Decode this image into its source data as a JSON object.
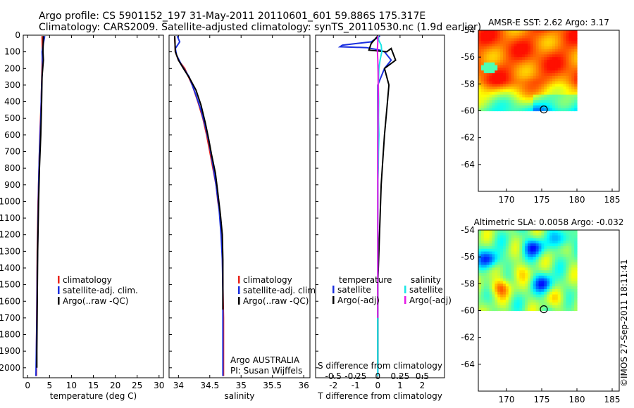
{
  "title_line1": "Argo profile: CS 5901152_197 31-May-2011 20110601_601 59.886S 175.317E",
  "title_line2": "Climatology: CARS2009. Satellite-adjusted climatology: synTS_20110530.nc (1.9d earlier)",
  "credit": "©IMOS 27-Sep-2011 18:11:41",
  "colors": {
    "climatology": "#e8231a",
    "satellite": "#1a2fe0",
    "argo": "#000000",
    "sat_salinity": "#19e6e6",
    "argo_salinity": "#e619e6"
  },
  "chart_data": [
    {
      "id": "temperature",
      "type": "line",
      "xlabel": "temperature (deg C)",
      "ylabel": "",
      "xlim": [
        -1,
        31
      ],
      "ylim": [
        2060,
        0
      ],
      "xticks": [
        0,
        5,
        10,
        15,
        20,
        25,
        30
      ],
      "yticks": [
        0,
        100,
        200,
        300,
        400,
        500,
        600,
        700,
        800,
        900,
        1000,
        1100,
        1200,
        1300,
        1400,
        1500,
        1600,
        1700,
        1800,
        1900,
        2000
      ],
      "legend": [
        "climatology",
        "satellite-adj. clim.",
        "Argo(..raw -QC)"
      ],
      "legend_position": "lower-center",
      "series": [
        {
          "name": "climatology",
          "color_key": "climatology",
          "points": [
            [
              3.3,
              5
            ],
            [
              3.35,
              100
            ],
            [
              3.3,
              200
            ],
            [
              3.1,
              400
            ],
            [
              2.8,
              600
            ],
            [
              2.6,
              800
            ],
            [
              2.4,
              1000
            ],
            [
              2.2,
              1300
            ],
            [
              2.1,
              1600
            ],
            [
              2.0,
              1900
            ],
            [
              2.0,
              2050
            ]
          ]
        },
        {
          "name": "satellite-adj. clim.",
          "color_key": "satellite",
          "points": [
            [
              3.9,
              5
            ],
            [
              3.6,
              50
            ],
            [
              3.3,
              100
            ],
            [
              3.4,
              180
            ],
            [
              3.2,
              300
            ],
            [
              3.0,
              500
            ],
            [
              2.7,
              700
            ],
            [
              2.5,
              900
            ],
            [
              2.4,
              1100
            ],
            [
              2.2,
              1400
            ],
            [
              2.1,
              1700
            ],
            [
              1.9,
              2050
            ]
          ]
        },
        {
          "name": "Argo(..raw -QC)",
          "color_key": "argo",
          "points": [
            [
              3.6,
              5
            ],
            [
              3.5,
              100
            ],
            [
              3.6,
              150
            ],
            [
              3.3,
              250
            ],
            [
              3.2,
              400
            ],
            [
              3.0,
              600
            ],
            [
              2.7,
              800
            ],
            [
              2.5,
              1000
            ],
            [
              2.3,
              1300
            ],
            [
              2.2,
              1600
            ],
            [
              2.1,
              1900
            ],
            [
              2.1,
              2000
            ]
          ]
        }
      ]
    },
    {
      "id": "salinity",
      "type": "line",
      "xlabel": "salinity",
      "ylabel": "",
      "xlim": [
        33.85,
        36.1
      ],
      "ylim": [
        2060,
        0
      ],
      "xticks": [
        34,
        34.5,
        35,
        35.5,
        36
      ],
      "legend": [
        "climatology",
        "satellite-adj. clim.",
        "Argo(..raw -QC)"
      ],
      "legend_position": "lower-right",
      "annotations": [
        "Argo AUSTRALIA",
        "PI: Susan Wijffels"
      ],
      "series": [
        {
          "name": "climatology",
          "color_key": "climatology",
          "points": [
            [
              33.94,
              5
            ],
            [
              33.95,
              100
            ],
            [
              34.0,
              150
            ],
            [
              34.1,
              200
            ],
            [
              34.22,
              300
            ],
            [
              34.31,
              400
            ],
            [
              34.39,
              500
            ],
            [
              34.45,
              600
            ],
            [
              34.5,
              700
            ],
            [
              34.55,
              800
            ],
            [
              34.6,
              900
            ],
            [
              34.63,
              1000
            ],
            [
              34.67,
              1100
            ],
            [
              34.69,
              1200
            ],
            [
              34.7,
              1300
            ],
            [
              34.71,
              1500
            ],
            [
              34.72,
              1700
            ],
            [
              34.72,
              1900
            ],
            [
              34.72,
              2050
            ]
          ]
        },
        {
          "name": "satellite-adj. clim.",
          "color_key": "satellite",
          "points": [
            [
              33.98,
              5
            ],
            [
              34.02,
              40
            ],
            [
              33.95,
              80
            ],
            [
              33.97,
              120
            ],
            [
              34.05,
              180
            ],
            [
              34.17,
              250
            ],
            [
              34.27,
              350
            ],
            [
              34.36,
              450
            ],
            [
              34.43,
              550
            ],
            [
              34.49,
              650
            ],
            [
              34.55,
              780
            ],
            [
              34.6,
              900
            ],
            [
              34.65,
              1050
            ],
            [
              34.68,
              1200
            ],
            [
              34.7,
              1350
            ],
            [
              34.71,
              1550
            ],
            [
              34.71,
              1750
            ],
            [
              34.71,
              1950
            ],
            [
              34.71,
              2050
            ]
          ]
        },
        {
          "name": "Argo(..raw -QC)",
          "color_key": "argo",
          "points": [
            [
              33.94,
              5
            ],
            [
              33.95,
              100
            ],
            [
              34.0,
              150
            ],
            [
              34.08,
              200
            ],
            [
              34.18,
              260
            ],
            [
              34.28,
              330
            ],
            [
              34.36,
              420
            ],
            [
              34.43,
              530
            ],
            [
              34.48,
              620
            ],
            [
              34.53,
              720
            ],
            [
              34.59,
              830
            ],
            [
              34.63,
              950
            ],
            [
              34.67,
              1080
            ],
            [
              34.7,
              1200
            ],
            [
              34.71,
              1350
            ],
            [
              34.71,
              1500
            ],
            [
              34.71,
              1650
            ]
          ]
        }
      ]
    },
    {
      "id": "difference",
      "type": "line",
      "xlabel": "T difference from climatology",
      "x2label": "S difference from climatology",
      "ylabel": "",
      "xlim": [
        -2.8,
        3.0
      ],
      "ylim": [
        2060,
        0
      ],
      "xticks": [
        -2,
        -1,
        0,
        1,
        2
      ],
      "x2ticks": [
        -0.5,
        -0.25,
        0,
        0.25,
        0.5
      ],
      "legend": [
        "temperature",
        "satellite",
        "Argo(-adj)",
        "salinity",
        "satellite",
        "Argo(-adj)"
      ],
      "legend_position": "lower-center",
      "series": [
        {
          "name": "temperature satellite",
          "color_key": "satellite",
          "points": [
            [
              0.1,
              5
            ],
            [
              -0.3,
              40
            ],
            [
              -1.6,
              60
            ],
            [
              -1.7,
              70
            ],
            [
              -0.5,
              75
            ],
            [
              0.1,
              90
            ],
            [
              0.3,
              100
            ],
            [
              0.6,
              150
            ],
            [
              0.3,
              200
            ],
            [
              0.0,
              300
            ],
            [
              0.0,
              500
            ],
            [
              0.0,
              1000
            ],
            [
              0.0,
              1500
            ],
            [
              0.0,
              2050
            ]
          ]
        },
        {
          "name": "temperature Argo(-adj)",
          "color_key": "argo",
          "points": [
            [
              0.0,
              5
            ],
            [
              -0.3,
              50
            ],
            [
              -0.4,
              90
            ],
            [
              0.4,
              100
            ],
            [
              0.6,
              80
            ],
            [
              0.8,
              150
            ],
            [
              0.3,
              200
            ],
            [
              0.5,
              300
            ],
            [
              0.4,
              450
            ],
            [
              0.3,
              600
            ],
            [
              0.25,
              700
            ],
            [
              0.15,
              900
            ],
            [
              0.1,
              1100
            ],
            [
              0.05,
              1300
            ],
            [
              0.0,
              1500
            ],
            [
              0.0,
              1900
            ],
            [
              0.0,
              2000
            ]
          ]
        },
        {
          "name": "salinity satellite",
          "color_key": "sat_salinity",
          "points": [
            [
              0.02,
              5
            ],
            [
              0.04,
              30
            ],
            [
              0.15,
              60
            ],
            [
              0.18,
              100
            ],
            [
              0.1,
              150
            ],
            [
              0.05,
              200
            ],
            [
              0.02,
              300
            ],
            [
              0.04,
              400
            ],
            [
              0.03,
              500
            ],
            [
              0.05,
              600
            ],
            [
              0.03,
              700
            ],
            [
              0.02,
              800
            ],
            [
              0.0,
              900
            ],
            [
              0.0,
              1500
            ],
            [
              0.0,
              2050
            ]
          ]
        },
        {
          "name": "salinity Argo(-adj)",
          "color_key": "argo_salinity",
          "points": [
            [
              0.0,
              5
            ],
            [
              0.0,
              40
            ],
            [
              -0.02,
              90
            ],
            [
              0.0,
              150
            ],
            [
              0.01,
              220
            ],
            [
              0.02,
              350
            ],
            [
              0.01,
              500
            ],
            [
              0.0,
              650
            ],
            [
              0.0,
              800
            ],
            [
              0.0,
              1000
            ],
            [
              0.0,
              1200
            ],
            [
              0.0,
              1500
            ],
            [
              0.0,
              1700
            ]
          ]
        }
      ]
    },
    {
      "id": "sst_map",
      "type": "heatmap",
      "title": "AMSR-E SST: 2.62 Argo: 3.17",
      "xlim": [
        166,
        186
      ],
      "ylim": [
        -66,
        -54
      ],
      "xticks": [
        170,
        175,
        180,
        185
      ],
      "yticks": [
        -54,
        -56,
        -58,
        -60,
        -62,
        -64
      ],
      "data_extent": {
        "x": [
          166,
          180
        ],
        "y": [
          -60,
          -54
        ]
      },
      "marker": {
        "lon": 175.3,
        "lat": -59.9
      }
    },
    {
      "id": "sla_map",
      "type": "heatmap",
      "title": "Altimetric SLA: 0.0058 Argo: -0.032",
      "xlim": [
        166,
        186
      ],
      "ylim": [
        -66,
        -54
      ],
      "xticks": [
        170,
        175,
        180,
        185
      ],
      "yticks": [
        -54,
        -56,
        -58,
        -60,
        -62,
        -64
      ],
      "data_extent": {
        "x": [
          166,
          180
        ],
        "y": [
          -60,
          -54
        ]
      },
      "marker": {
        "lon": 175.3,
        "lat": -59.9
      }
    }
  ]
}
